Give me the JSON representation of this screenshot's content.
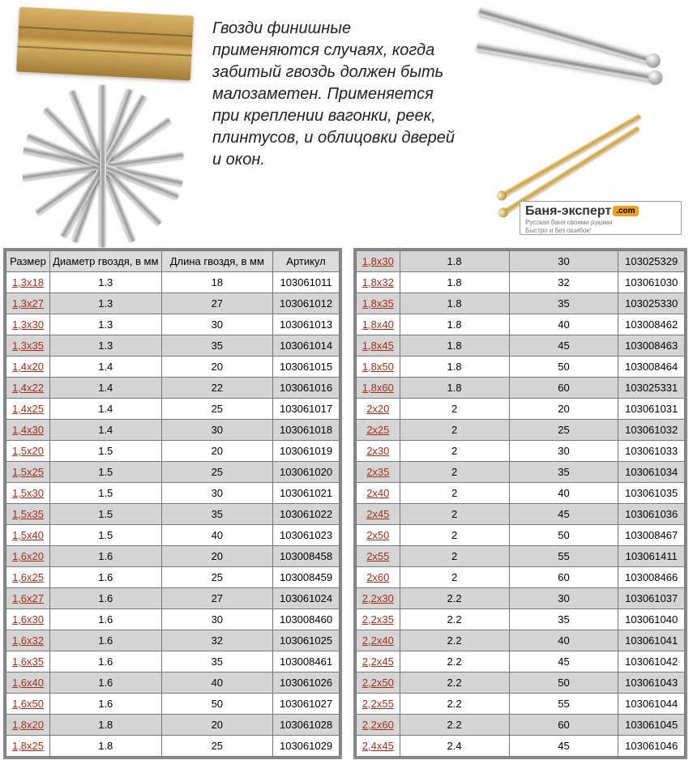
{
  "description": "Гвозди финишные применяются случаях, когда забитый гвоздь должен быть малозаметен. Применяется при креплении вагонки, реек, плинтусов, и облицовки дверей и окон.",
  "brand": {
    "name": "Баня-эксперт",
    "badge": ".com",
    "sub1": "Русская баня своими руками",
    "sub2": "Быстро и без ошибок!"
  },
  "headers": {
    "size": "Размер",
    "diameter": "Диаметр гвоздя, в мм",
    "length": "Длина гвоздя, в мм",
    "sku": "Артикул"
  },
  "left_rows": [
    {
      "size": "1,3x18",
      "d": "1.3",
      "l": "18",
      "sku": "103061011"
    },
    {
      "size": "1,3x27",
      "d": "1.3",
      "l": "27",
      "sku": "103061012"
    },
    {
      "size": "1,3x30",
      "d": "1.3",
      "l": "30",
      "sku": "103061013"
    },
    {
      "size": "1,3x35",
      "d": "1.3",
      "l": "35",
      "sku": "103061014"
    },
    {
      "size": "1,4x20",
      "d": "1.4",
      "l": "20",
      "sku": "103061015"
    },
    {
      "size": "1,4x22",
      "d": "1.4",
      "l": "22",
      "sku": "103061016"
    },
    {
      "size": "1,4x25",
      "d": "1.4",
      "l": "25",
      "sku": "103061017"
    },
    {
      "size": "1,4x30",
      "d": "1.4",
      "l": "30",
      "sku": "103061018"
    },
    {
      "size": "1,5x20",
      "d": "1.5",
      "l": "20",
      "sku": "103061019"
    },
    {
      "size": "1,5x25",
      "d": "1.5",
      "l": "25",
      "sku": "103061020"
    },
    {
      "size": "1,5x30",
      "d": "1.5",
      "l": "30",
      "sku": "103061021"
    },
    {
      "size": "1,5x35",
      "d": "1.5",
      "l": "35",
      "sku": "103061022"
    },
    {
      "size": "1,5x40",
      "d": "1.5",
      "l": "40",
      "sku": "103061023"
    },
    {
      "size": "1,6x20",
      "d": "1.6",
      "l": "20",
      "sku": "103008458"
    },
    {
      "size": "1,6x25",
      "d": "1.6",
      "l": "25",
      "sku": "103008459"
    },
    {
      "size": "1,6x27",
      "d": "1.6",
      "l": "27",
      "sku": "103061024"
    },
    {
      "size": "1,6x30",
      "d": "1.6",
      "l": "30",
      "sku": "103008460"
    },
    {
      "size": "1,6x32",
      "d": "1.6",
      "l": "32",
      "sku": "103061025"
    },
    {
      "size": "1,6x35",
      "d": "1.6",
      "l": "35",
      "sku": "103008461"
    },
    {
      "size": "1,6x40",
      "d": "1.6",
      "l": "40",
      "sku": "103061026"
    },
    {
      "size": "1,6x50",
      "d": "1.6",
      "l": "50",
      "sku": "103061027"
    },
    {
      "size": "1,8x20",
      "d": "1.8",
      "l": "20",
      "sku": "103061028"
    },
    {
      "size": "1,8x25",
      "d": "1.8",
      "l": "25",
      "sku": "103061029"
    }
  ],
  "right_rows": [
    {
      "size": "1,8x30",
      "d": "1.8",
      "l": "30",
      "sku": "103025329"
    },
    {
      "size": "1,8x32",
      "d": "1.8",
      "l": "32",
      "sku": "103061030"
    },
    {
      "size": "1,8x35",
      "d": "1.8",
      "l": "35",
      "sku": "103025330"
    },
    {
      "size": "1,8x40",
      "d": "1.8",
      "l": "40",
      "sku": "103008462"
    },
    {
      "size": "1,8x45",
      "d": "1.8",
      "l": "45",
      "sku": "103008463"
    },
    {
      "size": "1,8x50",
      "d": "1.8",
      "l": "50",
      "sku": "103008464"
    },
    {
      "size": "1,8x60",
      "d": "1.8",
      "l": "60",
      "sku": "103025331"
    },
    {
      "size": "2x20",
      "d": "2",
      "l": "20",
      "sku": "103061031"
    },
    {
      "size": "2x25",
      "d": "2",
      "l": "25",
      "sku": "103061032"
    },
    {
      "size": "2x30",
      "d": "2",
      "l": "30",
      "sku": "103061033"
    },
    {
      "size": "2x35",
      "d": "2",
      "l": "35",
      "sku": "103061034"
    },
    {
      "size": "2x40",
      "d": "2",
      "l": "40",
      "sku": "103061035"
    },
    {
      "size": "2x45",
      "d": "2",
      "l": "45",
      "sku": "103061036"
    },
    {
      "size": "2x50",
      "d": "2",
      "l": "50",
      "sku": "103008467"
    },
    {
      "size": "2x55",
      "d": "2",
      "l": "55",
      "sku": "103061411"
    },
    {
      "size": "2x60",
      "d": "2",
      "l": "60",
      "sku": "103008466"
    },
    {
      "size": "2,2x30",
      "d": "2.2",
      "l": "30",
      "sku": "103061037"
    },
    {
      "size": "2,2x35",
      "d": "2.2",
      "l": "35",
      "sku": "103061040"
    },
    {
      "size": "2,2x40",
      "d": "2.2",
      "l": "40",
      "sku": "103061041"
    },
    {
      "size": "2,2x45",
      "d": "2.2",
      "l": "45",
      "sku": "103061042"
    },
    {
      "size": "2,2x50",
      "d": "2.2",
      "l": "50",
      "sku": "103061043"
    },
    {
      "size": "2,2x55",
      "d": "2.2",
      "l": "55",
      "sku": "103061044"
    },
    {
      "size": "2,2x60",
      "d": "2.2",
      "l": "60",
      "sku": "103061045"
    },
    {
      "size": "2,4x45",
      "d": "2.4",
      "l": "45",
      "sku": "103061046"
    }
  ],
  "pile_angles": [
    12,
    -35,
    68,
    -8,
    110,
    45,
    -60,
    22,
    90
  ],
  "colors": {
    "link": "#a03018",
    "row_alt": "#d5d5d5",
    "border": "#777",
    "outer_border": "#888"
  }
}
